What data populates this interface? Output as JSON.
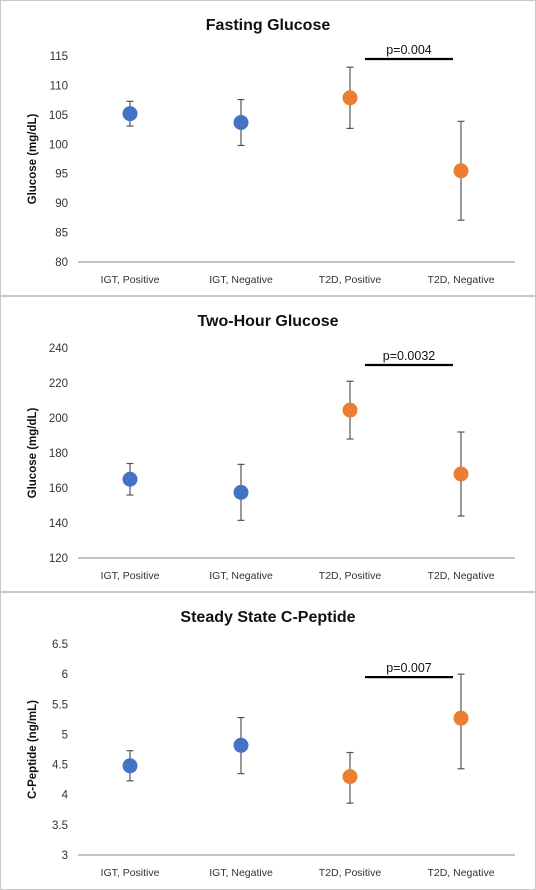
{
  "chart_data": [
    {
      "type": "scatter",
      "title": "Fasting Glucose",
      "ylabel": "Glucose (mg/dL)",
      "ylim": [
        80,
        115
      ],
      "yticks": [
        80,
        85,
        90,
        95,
        100,
        105,
        110,
        115
      ],
      "categories": [
        "IGT, Positive",
        "IGT, Negative",
        "T2D, Positive",
        "T2D, Negative"
      ],
      "values": [
        105.2,
        103.7,
        107.9,
        95.5
      ],
      "err_low": [
        103.1,
        99.8,
        102.7,
        87.1
      ],
      "err_high": [
        107.3,
        107.6,
        113.1,
        103.9
      ],
      "colors": [
        "#4472C4",
        "#4472C4",
        "#ED7D31",
        "#ED7D31"
      ],
      "significance": {
        "label": "p=0.004",
        "from": 2,
        "to": 3
      }
    },
    {
      "type": "scatter",
      "title": "Two-Hour Glucose",
      "ylabel": "Glucose (mg/dL)",
      "ylim": [
        120,
        240
      ],
      "yticks": [
        120,
        140,
        160,
        180,
        200,
        220,
        240
      ],
      "categories": [
        "IGT, Positive",
        "IGT, Negative",
        "T2D, Positive",
        "T2D, Negative"
      ],
      "values": [
        165,
        157.5,
        204.5,
        168
      ],
      "err_low": [
        156,
        141.5,
        188,
        144
      ],
      "err_high": [
        174,
        173.5,
        221,
        192
      ],
      "colors": [
        "#4472C4",
        "#4472C4",
        "#ED7D31",
        "#ED7D31"
      ],
      "significance": {
        "label": "p=0.0032",
        "from": 2,
        "to": 3
      }
    },
    {
      "type": "scatter",
      "title": "Steady State C-Peptide",
      "ylabel": "C-Peptide (ng/mL)",
      "ylim": [
        3,
        6.5
      ],
      "yticks": [
        3,
        3.5,
        4,
        4.5,
        5,
        5.5,
        6,
        6.5
      ],
      "categories": [
        "IGT, Positive",
        "IGT, Negative",
        "T2D, Positive",
        "T2D, Negative"
      ],
      "values": [
        4.48,
        4.82,
        4.3,
        5.27
      ],
      "err_low": [
        4.23,
        4.35,
        3.86,
        4.43
      ],
      "err_high": [
        4.73,
        5.28,
        4.7,
        6.0
      ],
      "colors": [
        "#4472C4",
        "#4472C4",
        "#ED7D31",
        "#ED7D31"
      ],
      "significance": {
        "label": "p=0.007",
        "from": 2,
        "to": 3
      }
    }
  ]
}
